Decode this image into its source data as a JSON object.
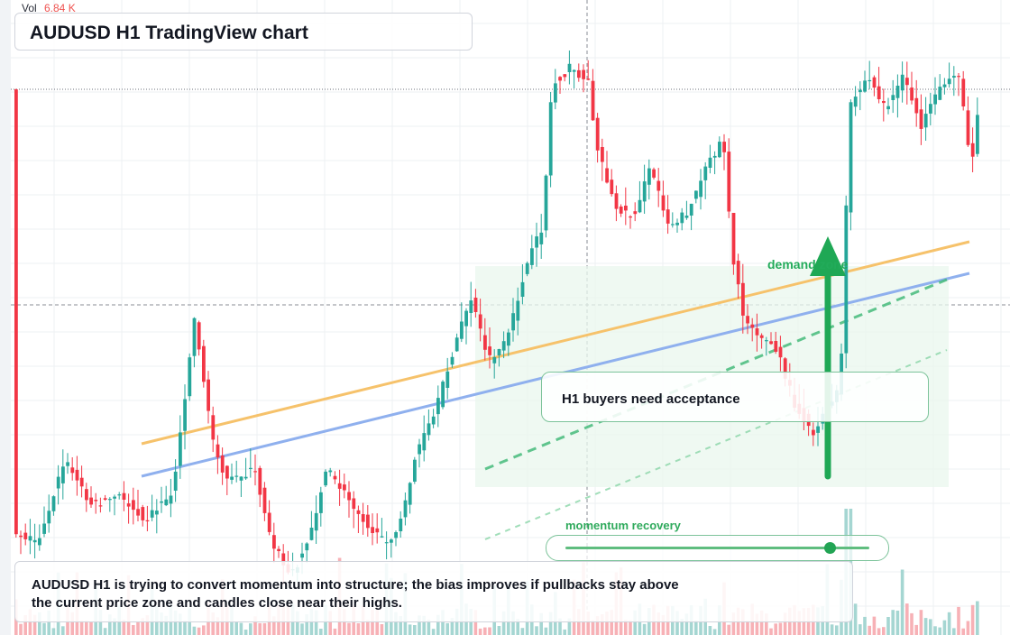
{
  "header": {
    "title": "AUDUSD H1 TradingView chart",
    "volume_label": "Vol",
    "volume_value": "6.84 K"
  },
  "annotations": {
    "zone_label": "demand zone",
    "callout": "H1 buyers need acceptance",
    "momentum_label": "momentum recovery",
    "momentum_level": 0.87,
    "summary": "AUDUSD H1 is trying to convert momentum into structure; the bias improves if pullbacks stay above the current price zone and candles close near their highs."
  },
  "colors": {
    "bull": "#26a69a",
    "bear": "#f23645",
    "vol_bull": "#a5d6d2",
    "vol_bear": "#f7b1b6",
    "trend_yellow": "#f6c26b",
    "trend_blue": "#8fb0ee",
    "green_accent": "#1fa855",
    "grid": "#eef0f3"
  },
  "icons": {
    "breakout_arrow": "arrow-up-icon"
  }
}
